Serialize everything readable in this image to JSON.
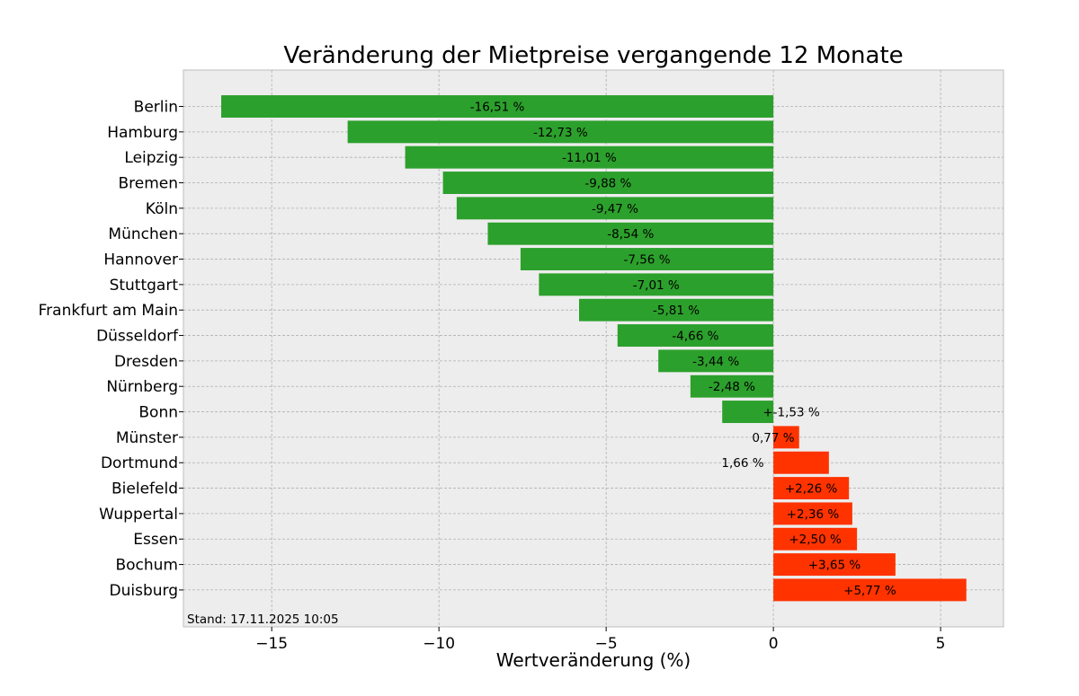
{
  "chart_data": {
    "type": "bar",
    "orientation": "horizontal",
    "title": "Veränderung der Mietpreise vergangende 12 Monate",
    "xlabel": "Wertveränderung (%)",
    "ylabel": "",
    "xlim": [
      -17.64,
      6.88
    ],
    "xticks": [
      -15,
      -10,
      -5,
      0,
      5
    ],
    "xtick_labels": [
      "−15",
      "−10",
      "−5",
      "0",
      "5"
    ],
    "grid": true,
    "categories": [
      "Berlin",
      "Hamburg",
      "Leipzig",
      "Bremen",
      "Köln",
      "München",
      "Hannover",
      "Stuttgart",
      "Frankfurt am Main",
      "Düsseldorf",
      "Dresden",
      "Nürnberg",
      "Bonn",
      "Münster",
      "Dortmund",
      "Bielefeld",
      "Wuppertal",
      "Essen",
      "Bochum",
      "Duisburg"
    ],
    "values": [
      -16.51,
      -12.73,
      -11.01,
      -9.88,
      -9.47,
      -8.54,
      -7.56,
      -7.01,
      -5.81,
      -4.66,
      -3.44,
      -2.48,
      -1.53,
      0.77,
      1.66,
      2.26,
      2.36,
      2.5,
      3.65,
      5.77
    ],
    "data_labels": [
      "-16,51 %",
      "-12,73 %",
      "-11,01 %",
      "-9,88 %",
      "-9,47 %",
      "-8,54 %",
      "-7,56 %",
      "-7,01 %",
      "-5,81 %",
      "-4,66 %",
      "-3,44 %",
      "-2,48 %",
      "+-1,53 %",
      "0,77 %",
      "1,66 %",
      "+2,26 %",
      "+2,36 %",
      "+2,50 %",
      "+3,65 %",
      "+5,77 %"
    ],
    "colors": {
      "negative": "#2ca02c",
      "positive": "#ff3300"
    },
    "annotation": "Stand: 17.11.2025 10:05"
  }
}
